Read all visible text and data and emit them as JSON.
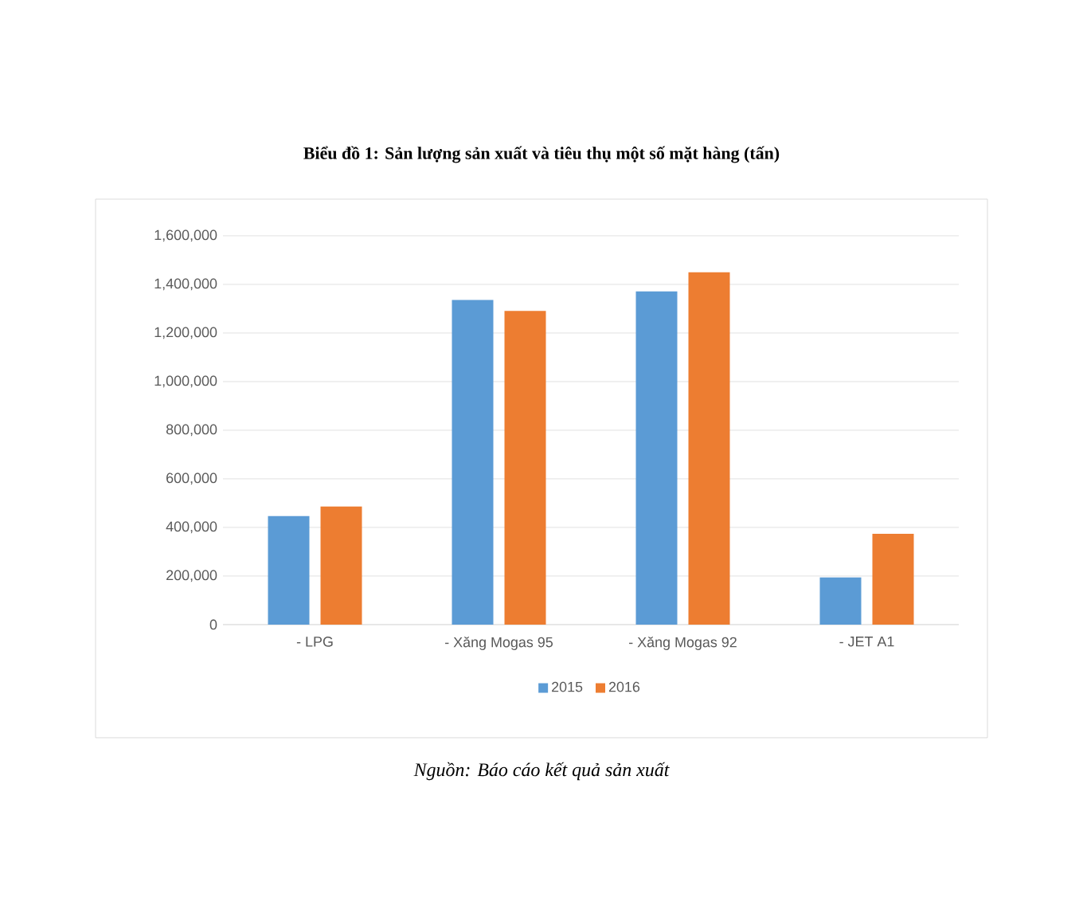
{
  "chart_data": {
    "type": "bar",
    "title": "Biểu đồ 1: Sản lượng sản xuất và tiêu thụ một số mặt hàng (tấn)",
    "categories": [
      "-  LPG",
      "-  Xăng Mogas 95",
      "-  Xăng Mogas 92",
      "-  JET A1"
    ],
    "series": [
      {
        "name": "2015",
        "color": "#5b9bd5",
        "values": [
          447000,
          1336000,
          1371000,
          194000
        ]
      },
      {
        "name": "2016",
        "color": "#ed7d31",
        "values": [
          486000,
          1291000,
          1450000,
          374000
        ]
      }
    ],
    "ylim": [
      0,
      1600000
    ],
    "yticks": [
      0,
      {
        "value": 200000,
        "label": "200,000"
      },
      {
        "value": 400000,
        "label": "400,000"
      },
      {
        "value": 600000,
        "label": "600,000"
      },
      {
        "value": 800000,
        "label": "800,000"
      },
      {
        "value": 1000000,
        "label": "1,000,000"
      },
      {
        "value": 1200000,
        "label": "1,200,000"
      },
      {
        "value": 1400000,
        "label": "1,400,000"
      },
      {
        "value": 1600000,
        "label": "1,600,000"
      }
    ],
    "grid": "y",
    "legend": "bottom",
    "annotations": [
      "Nguồn: Báo cáo kết quả sản xuất"
    ]
  }
}
